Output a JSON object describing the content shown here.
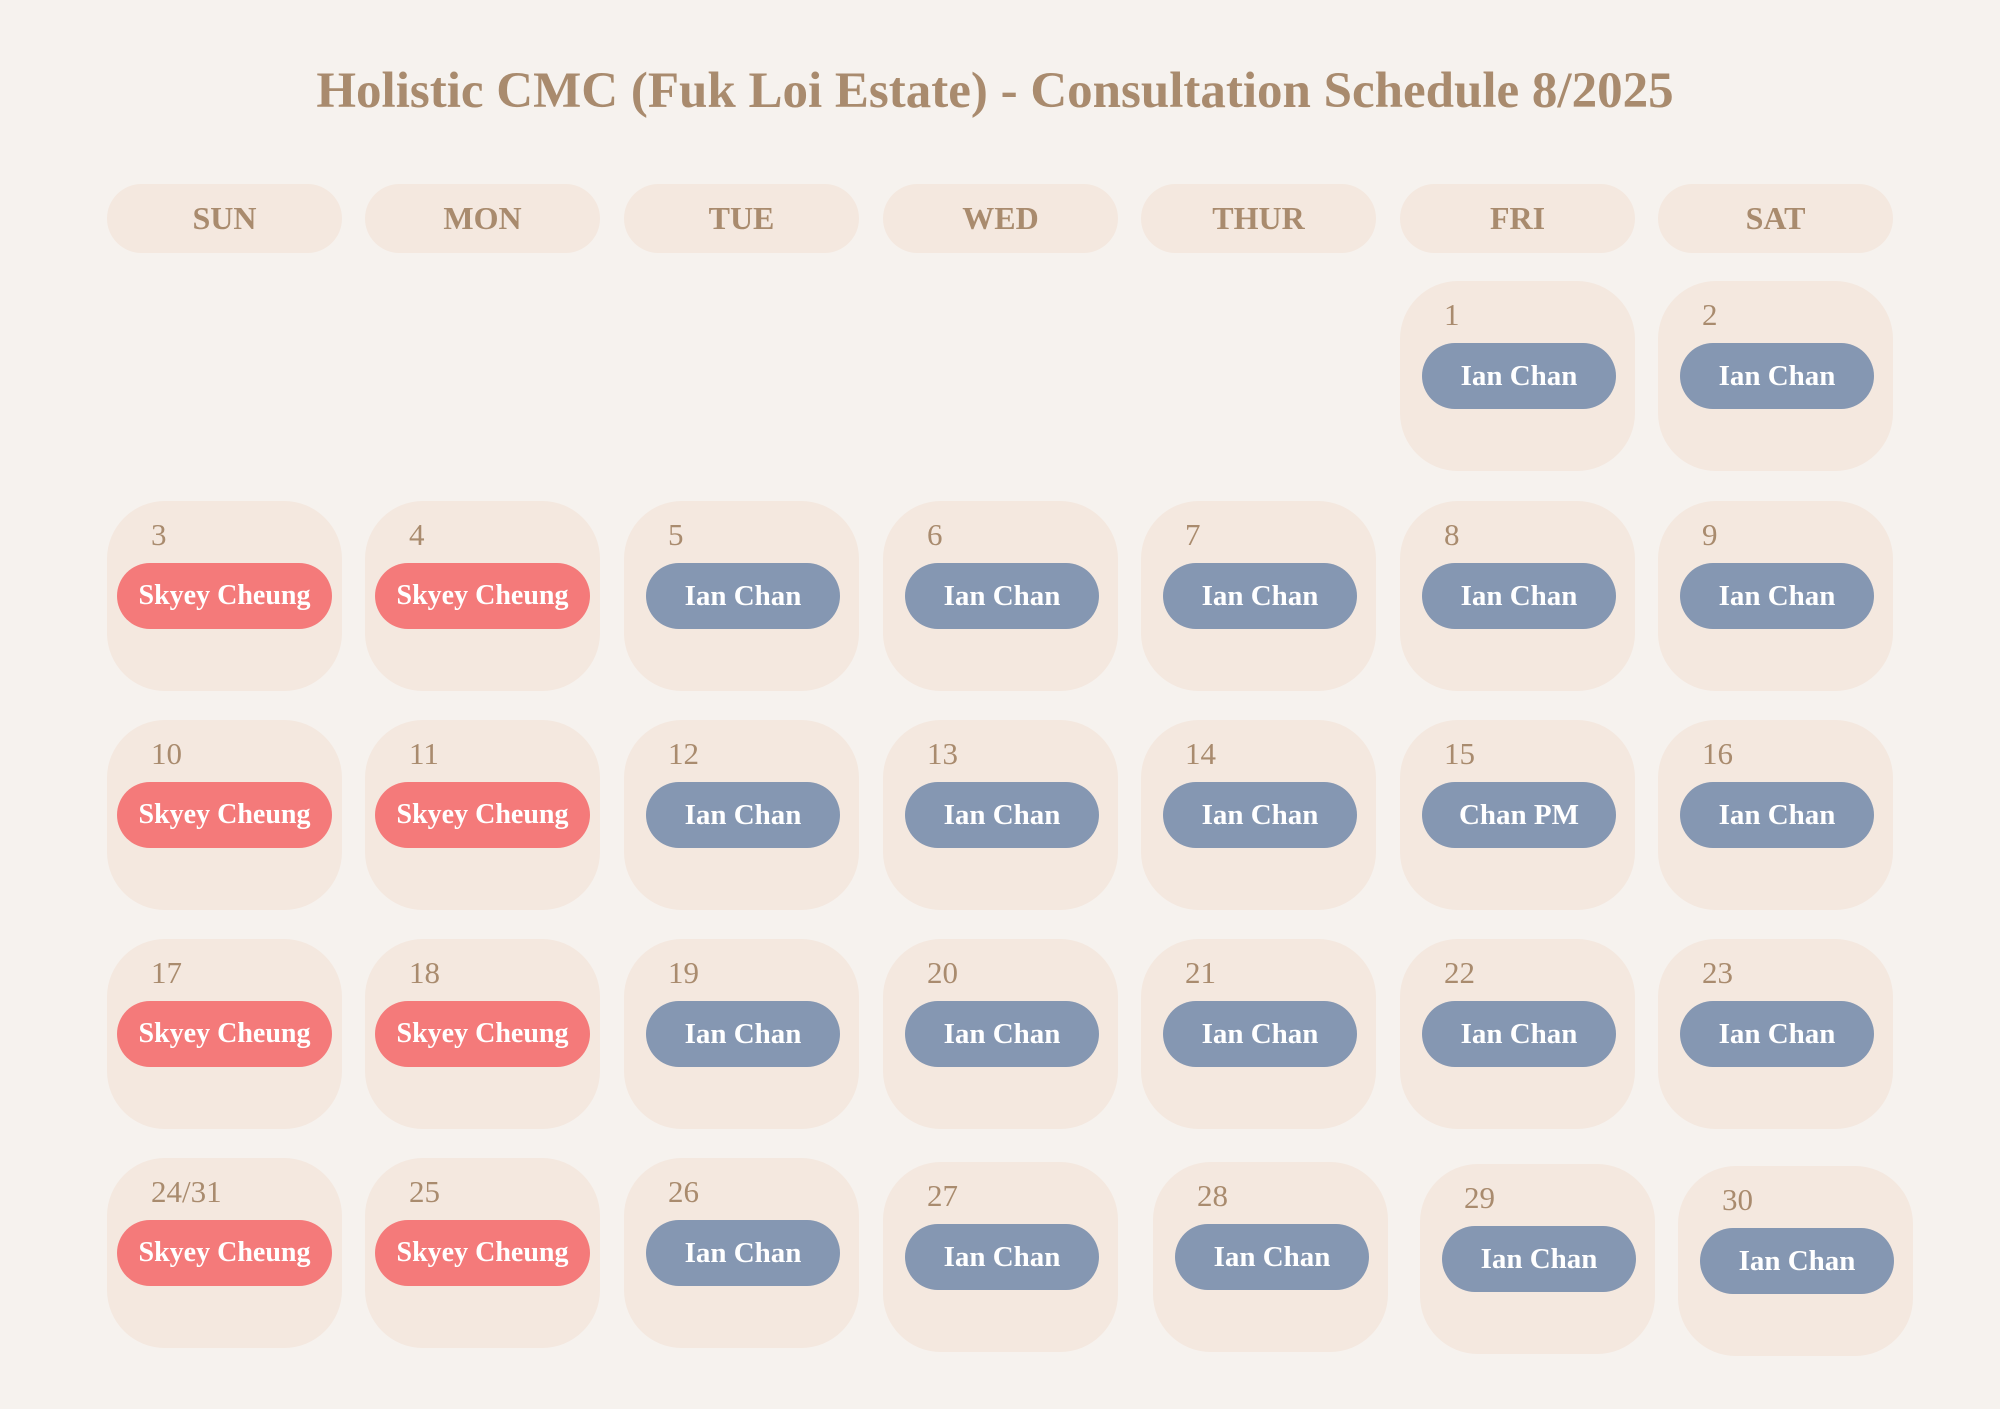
{
  "title": "Holistic CMC (Fuk Loi Estate) - Consultation Schedule 8/2025",
  "weekdays": [
    "SUN",
    "MON",
    "TUE",
    "WED",
    "THUR",
    "FRI",
    "SAT"
  ],
  "colors": {
    "skyey": "#f47a7a",
    "ian": "#8597b2",
    "text": "#a98b6e",
    "cell": "#f4e8df",
    "background": "#f6f2ee"
  },
  "days": [
    {
      "label": "1",
      "doctor": "Ian Chan",
      "color": "ian"
    },
    {
      "label": "2",
      "doctor": "Ian Chan",
      "color": "ian"
    },
    {
      "label": "3",
      "doctor": "Skyey Cheung",
      "color": "skyey"
    },
    {
      "label": "4",
      "doctor": "Skyey Cheung",
      "color": "skyey"
    },
    {
      "label": "5",
      "doctor": "Ian Chan",
      "color": "ian"
    },
    {
      "label": "6",
      "doctor": "Ian Chan",
      "color": "ian"
    },
    {
      "label": "7",
      "doctor": "Ian Chan",
      "color": "ian"
    },
    {
      "label": "8",
      "doctor": "Ian Chan",
      "color": "ian"
    },
    {
      "label": "9",
      "doctor": "Ian Chan",
      "color": "ian"
    },
    {
      "label": "10",
      "doctor": "Skyey Cheung",
      "color": "skyey"
    },
    {
      "label": "11",
      "doctor": "Skyey Cheung",
      "color": "skyey"
    },
    {
      "label": "12",
      "doctor": "Ian Chan",
      "color": "ian"
    },
    {
      "label": "13",
      "doctor": "Ian Chan",
      "color": "ian"
    },
    {
      "label": "14",
      "doctor": "Ian Chan",
      "color": "ian"
    },
    {
      "label": "15",
      "doctor": "Chan PM",
      "color": "ian"
    },
    {
      "label": "16",
      "doctor": "Ian Chan",
      "color": "ian"
    },
    {
      "label": "17",
      "doctor": "Skyey Cheung",
      "color": "skyey"
    },
    {
      "label": "18",
      "doctor": "Skyey Cheung",
      "color": "skyey"
    },
    {
      "label": "19",
      "doctor": "Ian Chan",
      "color": "ian"
    },
    {
      "label": "20",
      "doctor": "Ian Chan",
      "color": "ian"
    },
    {
      "label": "21",
      "doctor": "Ian Chan",
      "color": "ian"
    },
    {
      "label": "22",
      "doctor": "Ian Chan",
      "color": "ian"
    },
    {
      "label": "23",
      "doctor": "Ian Chan",
      "color": "ian"
    },
    {
      "label": "24/31",
      "doctor": "Skyey Cheung",
      "color": "skyey"
    },
    {
      "label": "25",
      "doctor": "Skyey Cheung",
      "color": "skyey"
    },
    {
      "label": "26",
      "doctor": "Ian Chan",
      "color": "ian"
    },
    {
      "label": "27",
      "doctor": "Ian Chan",
      "color": "ian"
    },
    {
      "label": "28",
      "doctor": "Ian Chan",
      "color": "ian"
    },
    {
      "label": "29",
      "doctor": "Ian Chan",
      "color": "ian"
    },
    {
      "label": "30",
      "doctor": "Ian Chan",
      "color": "ian"
    }
  ]
}
